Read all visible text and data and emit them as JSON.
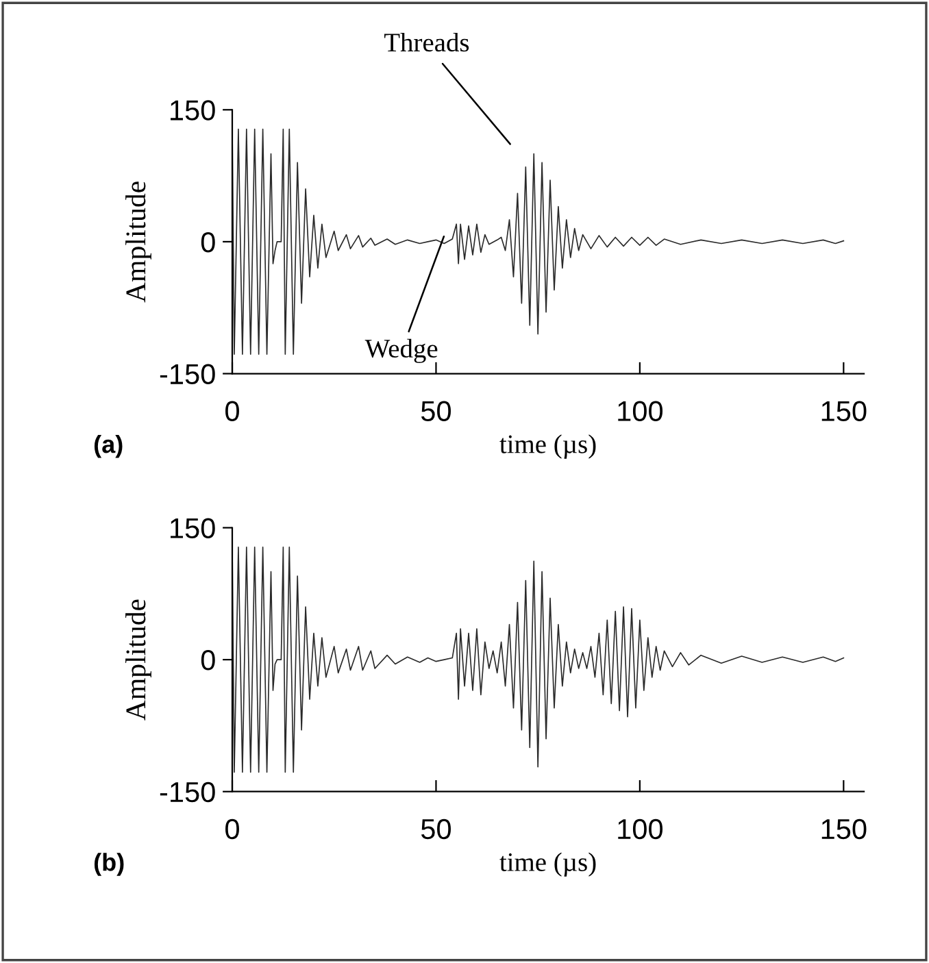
{
  "chart_data": [
    {
      "type": "line",
      "xlabel": "time (µs)",
      "ylabel": "Amplitude",
      "xlim": [
        0,
        155
      ],
      "ylim": [
        -150,
        150
      ],
      "xticks": [
        0,
        50,
        100,
        150
      ],
      "yticks": [
        -150,
        0,
        150
      ],
      "grid": false,
      "marker": "none",
      "line_style": "solid",
      "annotations": [
        "(a)",
        "Threads",
        "Wedge"
      ],
      "series": [
        {
          "color": "#2a2a2a",
          "x": [
            0,
            0.5,
            1.5,
            2.5,
            3.5,
            4.5,
            5.5,
            6.5,
            7.5,
            8.5,
            9.5,
            10,
            10.5,
            11,
            12,
            12.5,
            13,
            14,
            15,
            16,
            17,
            18,
            19,
            20,
            21,
            22,
            23,
            25,
            26,
            28,
            29,
            31,
            32,
            34,
            35,
            38,
            40,
            43,
            46,
            48,
            50,
            52,
            54,
            55,
            55.5,
            56,
            57,
            58,
            59,
            60,
            61,
            62,
            63,
            65,
            66,
            67,
            68,
            69,
            70,
            71,
            72,
            73,
            74,
            75,
            76,
            77,
            78,
            79,
            80,
            81,
            82,
            83,
            84,
            85,
            86,
            88,
            90,
            92,
            94,
            96,
            98,
            100,
            102,
            104,
            106,
            110,
            115,
            120,
            125,
            130,
            135,
            140,
            145,
            148,
            150
          ],
          "values": [
            128,
            -128,
            128,
            -128,
            128,
            -128,
            128,
            -128,
            128,
            -128,
            100,
            -25,
            -10,
            0,
            0,
            128,
            -128,
            128,
            -128,
            90,
            -70,
            60,
            -40,
            30,
            -30,
            20,
            -18,
            12,
            -10,
            8,
            -8,
            7,
            -6,
            4,
            -4,
            3,
            -3,
            2,
            -2,
            0,
            2,
            -2,
            3,
            20,
            -25,
            20,
            -20,
            18,
            -15,
            20,
            -12,
            8,
            -3,
            2,
            5,
            -10,
            25,
            -40,
            55,
            -70,
            85,
            -95,
            100,
            -105,
            90,
            -80,
            70,
            -55,
            40,
            -30,
            25,
            -18,
            15,
            -10,
            8,
            -8,
            7,
            -6,
            5,
            -5,
            5,
            -4,
            5,
            -4,
            3,
            -3,
            2,
            -2,
            2,
            -2,
            2,
            -2,
            2,
            -2,
            1
          ]
        }
      ]
    },
    {
      "type": "line",
      "xlabel": "time (µs)",
      "ylabel": "Amplitude",
      "xlim": [
        0,
        155
      ],
      "ylim": [
        -150,
        150
      ],
      "xticks": [
        0,
        50,
        100,
        150
      ],
      "yticks": [
        -150,
        0,
        150
      ],
      "grid": false,
      "marker": "none",
      "line_style": "solid",
      "annotations": [
        "(b)"
      ],
      "series": [
        {
          "color": "#2a2a2a",
          "x": [
            0,
            0.5,
            1.5,
            2.5,
            3.5,
            4.5,
            5.5,
            6.5,
            7.5,
            8.5,
            9.5,
            10,
            10.5,
            11,
            12,
            12.5,
            13,
            14,
            15,
            16,
            17,
            18,
            19,
            20,
            21,
            22,
            23,
            25,
            26,
            28,
            29,
            31,
            32,
            34,
            35,
            38,
            40,
            43,
            46,
            48,
            50,
            52,
            54,
            55,
            55.5,
            56,
            57,
            58,
            59,
            60,
            61,
            62,
            63,
            64,
            65,
            66,
            67,
            68,
            69,
            70,
            71,
            72,
            73,
            74,
            75,
            76,
            77,
            78,
            79,
            80,
            81,
            82,
            83,
            84,
            85,
            86,
            87,
            88,
            89,
            90,
            91,
            92,
            93,
            94,
            95,
            96,
            97,
            98,
            99,
            100,
            101,
            102,
            103,
            104,
            105,
            106,
            108,
            110,
            112,
            115,
            120,
            125,
            130,
            135,
            140,
            145,
            148,
            150
          ],
          "values": [
            128,
            -128,
            128,
            -128,
            128,
            -128,
            128,
            -128,
            128,
            -128,
            100,
            -35,
            -5,
            0,
            0,
            128,
            -128,
            128,
            -128,
            95,
            -80,
            60,
            -45,
            30,
            -30,
            25,
            -20,
            15,
            -15,
            12,
            -12,
            15,
            -12,
            10,
            -10,
            5,
            -5,
            3,
            -3,
            2,
            -2,
            0,
            2,
            30,
            -45,
            35,
            -30,
            30,
            -35,
            35,
            -40,
            20,
            -10,
            10,
            -15,
            20,
            -30,
            40,
            -55,
            65,
            -80,
            90,
            -100,
            112,
            -122,
            100,
            -90,
            70,
            -55,
            40,
            -30,
            20,
            -15,
            12,
            -10,
            8,
            -10,
            15,
            -20,
            30,
            -40,
            45,
            -50,
            55,
            -58,
            60,
            -65,
            58,
            -55,
            45,
            -35,
            25,
            -20,
            15,
            -12,
            10,
            -8,
            8,
            -6,
            5,
            -4,
            4,
            -3,
            3,
            -3,
            3,
            -2,
            2
          ]
        }
      ]
    }
  ]
}
